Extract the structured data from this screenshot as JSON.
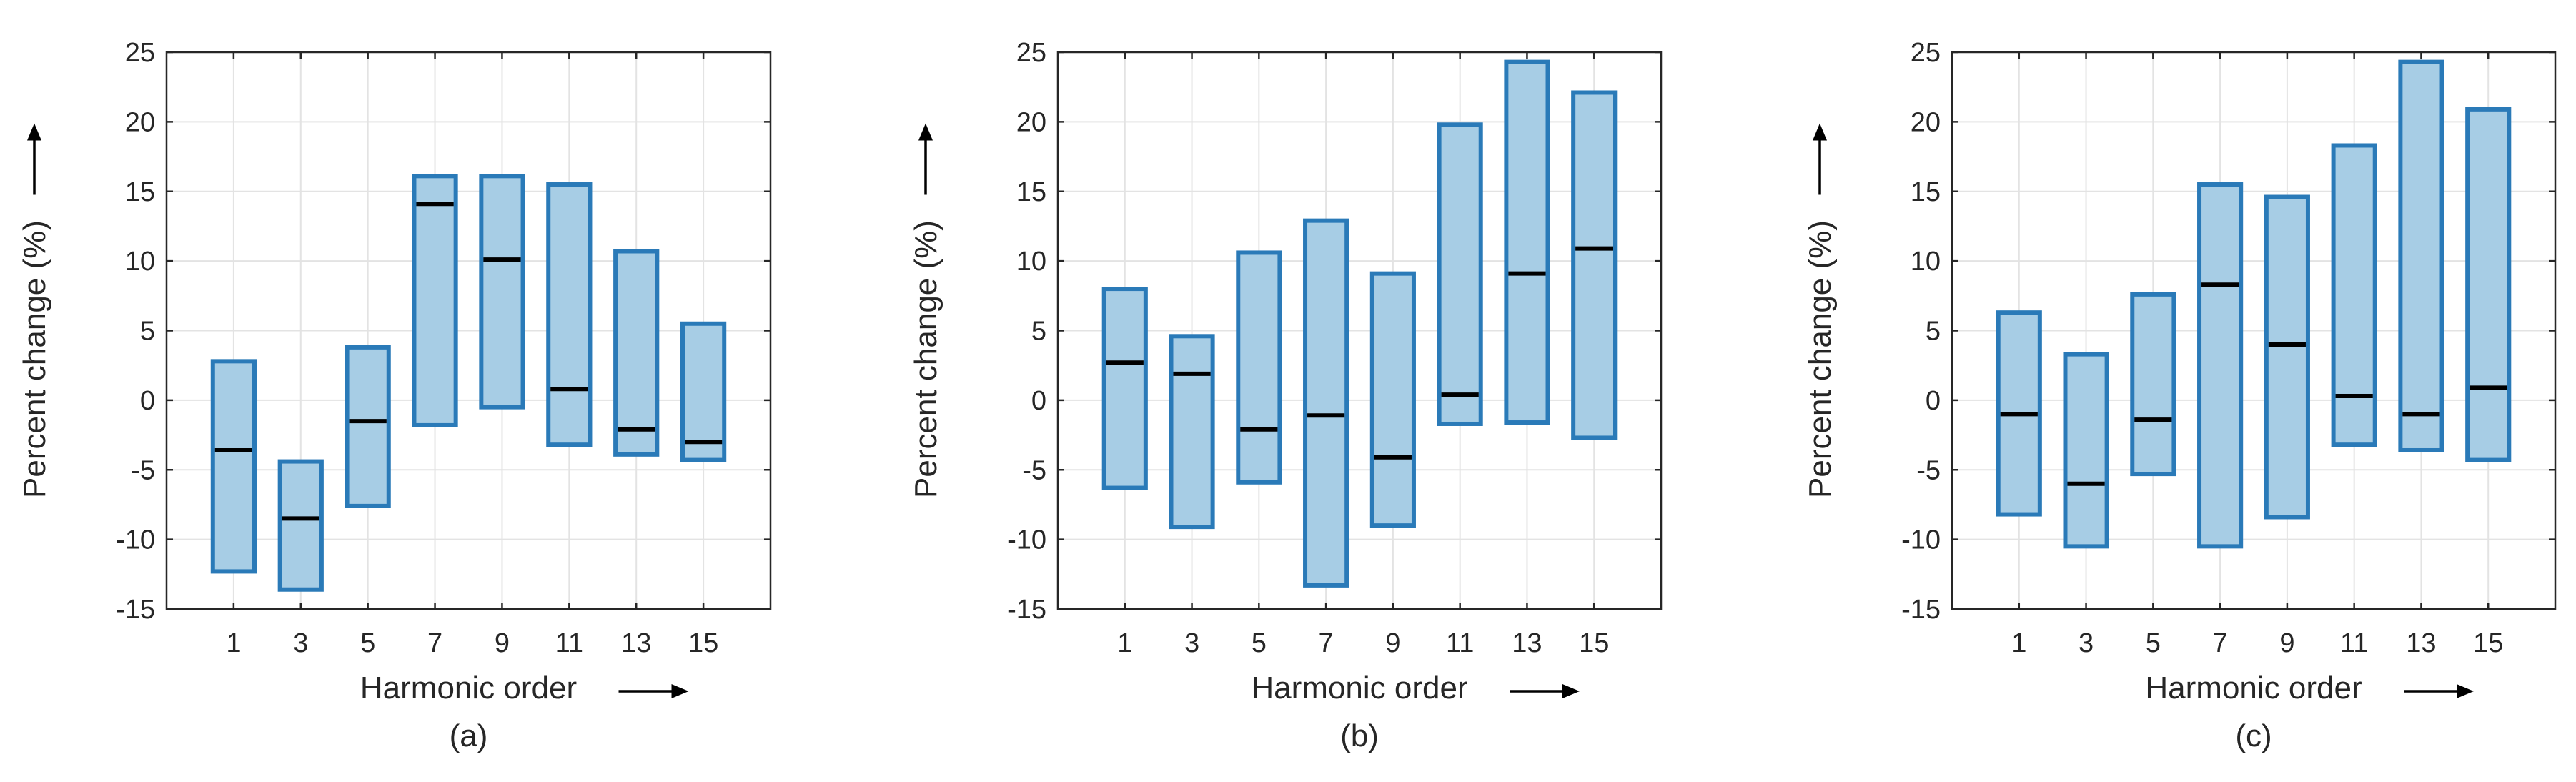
{
  "chart_data": [
    {
      "type": "range-bar",
      "caption": "(a)",
      "xlabel": "Harmonic order",
      "ylabel": "Percent change (%)",
      "ylim": [
        -15,
        25
      ],
      "yticks": [
        -15,
        -10,
        -5,
        0,
        5,
        10,
        15,
        20,
        25
      ],
      "categories": [
        "1",
        "3",
        "5",
        "7",
        "9",
        "11",
        "13",
        "15"
      ],
      "low": [
        -12.3,
        -13.6,
        -7.6,
        -1.8,
        -0.5,
        -3.2,
        -3.9,
        -4.3
      ],
      "high": [
        2.8,
        -4.4,
        3.8,
        16.1,
        16.1,
        15.5,
        10.7,
        5.5
      ],
      "median": [
        -3.6,
        -8.5,
        -1.5,
        14.1,
        10.1,
        0.8,
        -2.1,
        -3.0
      ],
      "grid": true
    },
    {
      "type": "range-bar",
      "caption": "(b)",
      "xlabel": "Harmonic order",
      "ylabel": "Percent change (%)",
      "ylim": [
        -15,
        25
      ],
      "yticks": [
        -15,
        -10,
        -5,
        0,
        5,
        10,
        15,
        20,
        25
      ],
      "categories": [
        "1",
        "3",
        "5",
        "7",
        "9",
        "11",
        "13",
        "15"
      ],
      "low": [
        -6.3,
        -9.1,
        -5.9,
        -13.3,
        -9.0,
        -1.7,
        -1.6,
        -2.7
      ],
      "high": [
        8.0,
        4.6,
        10.6,
        12.9,
        9.1,
        19.8,
        24.3,
        22.1
      ],
      "median": [
        2.7,
        1.9,
        -2.1,
        -1.1,
        -4.1,
        0.4,
        9.1,
        10.9
      ],
      "grid": true
    },
    {
      "type": "range-bar",
      "caption": "(c)",
      "xlabel": "Harmonic order",
      "ylabel": "Percent change (%)",
      "ylim": [
        -15,
        25
      ],
      "yticks": [
        -15,
        -10,
        -5,
        0,
        5,
        10,
        15,
        20,
        25
      ],
      "categories": [
        "1",
        "3",
        "5",
        "7",
        "9",
        "11",
        "13",
        "15"
      ],
      "low": [
        -8.2,
        -10.5,
        -5.3,
        -10.5,
        -8.4,
        -3.2,
        -3.6,
        -4.3
      ],
      "high": [
        6.3,
        3.3,
        7.6,
        15.5,
        14.6,
        18.3,
        24.3,
        20.9
      ],
      "median": [
        -1.0,
        -6.0,
        -1.4,
        8.3,
        4.0,
        0.3,
        -1.0,
        0.9
      ],
      "grid": true
    }
  ],
  "colors": {
    "bar_fill": "#a7cde5",
    "bar_edge": "#2a7ab8",
    "median": "#000000",
    "grid": "#e3e3e3",
    "axis": "#262626"
  }
}
